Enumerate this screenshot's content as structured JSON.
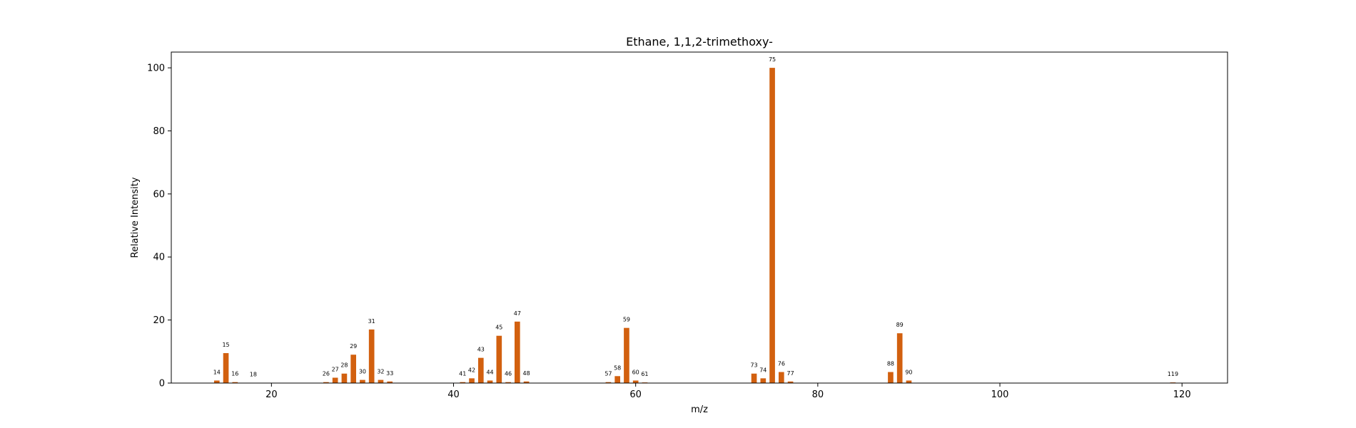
{
  "chart_data": {
    "type": "bar",
    "title": "Ethane, 1,1,2-trimethoxy-",
    "xlabel": "m/z",
    "ylabel": "Relative Intensity",
    "xlim": [
      9,
      125
    ],
    "ylim": [
      0,
      105
    ],
    "xticks": [
      20,
      40,
      60,
      80,
      100,
      120
    ],
    "yticks": [
      0,
      20,
      40,
      60,
      80,
      100
    ],
    "bar_color": "#d2600f",
    "grid": false,
    "legend": "none",
    "peaks": [
      {
        "mz": 14,
        "intensity": 0.8,
        "label": "14"
      },
      {
        "mz": 15,
        "intensity": 9.5,
        "label": "15"
      },
      {
        "mz": 16,
        "intensity": 0.3,
        "label": "16"
      },
      {
        "mz": 18,
        "intensity": 0.1,
        "label": "18"
      },
      {
        "mz": 26,
        "intensity": 0.3,
        "label": "26"
      },
      {
        "mz": 27,
        "intensity": 1.7,
        "label": "27"
      },
      {
        "mz": 28,
        "intensity": 3.0,
        "label": "28"
      },
      {
        "mz": 29,
        "intensity": 9.0,
        "label": "29"
      },
      {
        "mz": 30,
        "intensity": 1.0,
        "label": "30"
      },
      {
        "mz": 31,
        "intensity": 17.0,
        "label": "31"
      },
      {
        "mz": 32,
        "intensity": 1.0,
        "label": "32"
      },
      {
        "mz": 33,
        "intensity": 0.5,
        "label": "33"
      },
      {
        "mz": 41,
        "intensity": 0.3,
        "label": "41"
      },
      {
        "mz": 42,
        "intensity": 1.5,
        "label": "42"
      },
      {
        "mz": 43,
        "intensity": 8.0,
        "label": "43"
      },
      {
        "mz": 44,
        "intensity": 0.8,
        "label": "44"
      },
      {
        "mz": 45,
        "intensity": 15.0,
        "label": "45"
      },
      {
        "mz": 46,
        "intensity": 0.3,
        "label": "46"
      },
      {
        "mz": 47,
        "intensity": 19.5,
        "label": "47"
      },
      {
        "mz": 48,
        "intensity": 0.5,
        "label": "48"
      },
      {
        "mz": 57,
        "intensity": 0.3,
        "label": "57"
      },
      {
        "mz": 58,
        "intensity": 2.2,
        "label": "58"
      },
      {
        "mz": 59,
        "intensity": 17.5,
        "label": "59"
      },
      {
        "mz": 60,
        "intensity": 0.8,
        "label": "60"
      },
      {
        "mz": 61,
        "intensity": 0.2,
        "label": "61"
      },
      {
        "mz": 73,
        "intensity": 3.0,
        "label": "73"
      },
      {
        "mz": 74,
        "intensity": 1.5,
        "label": "74"
      },
      {
        "mz": 75,
        "intensity": 100.0,
        "label": "75"
      },
      {
        "mz": 76,
        "intensity": 3.5,
        "label": "76"
      },
      {
        "mz": 77,
        "intensity": 0.5,
        "label": "77"
      },
      {
        "mz": 88,
        "intensity": 3.5,
        "label": "88"
      },
      {
        "mz": 89,
        "intensity": 15.8,
        "label": "89"
      },
      {
        "mz": 90,
        "intensity": 0.8,
        "label": "90"
      },
      {
        "mz": 119,
        "intensity": 0.2,
        "label": "119"
      }
    ]
  }
}
